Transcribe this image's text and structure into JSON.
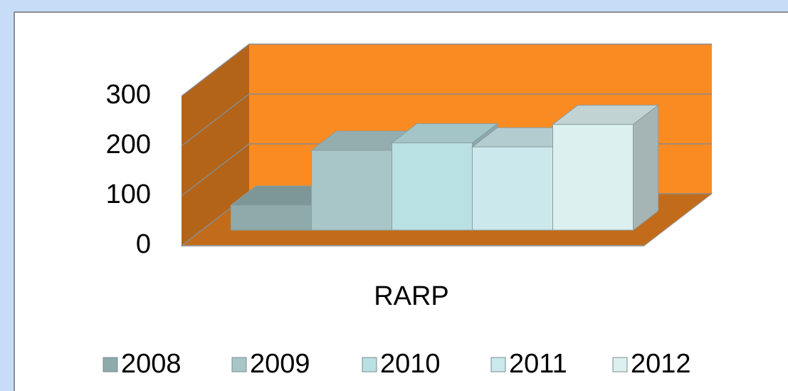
{
  "chart_data": {
    "type": "bar3d",
    "categories": [
      "RARP"
    ],
    "series": [
      {
        "name": "2008",
        "color": "#8eaaab",
        "values": [
          50
        ]
      },
      {
        "name": "2009",
        "color": "#a8c6c8",
        "values": [
          160
        ]
      },
      {
        "name": "2010",
        "color": "#b9e0e3",
        "values": [
          175
        ]
      },
      {
        "name": "2011",
        "color": "#cbe8ec",
        "values": [
          167
        ]
      },
      {
        "name": "2012",
        "color": "#dcf0f0",
        "values": [
          212
        ]
      }
    ],
    "ylim": [
      0,
      300
    ],
    "yticks": [
      0,
      100,
      200,
      300
    ],
    "grid": true,
    "legend": "bottom",
    "wall_color": "#f98b22"
  }
}
